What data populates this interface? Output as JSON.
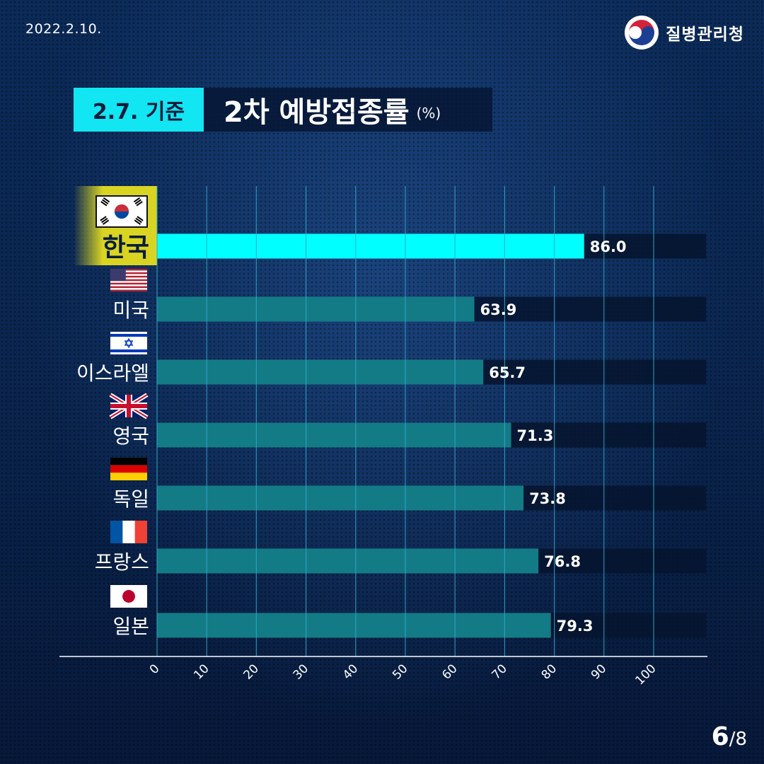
{
  "header": {
    "date": "2022.2.10.",
    "agency_name": "질병관리청"
  },
  "title": {
    "tag": "2.7. 기준",
    "main": "2차 예방접종률",
    "unit": "(%)"
  },
  "colors": {
    "highlight_bar": "#00ffff",
    "bar": "#137b86",
    "track": "#06142e",
    "highlight_label_bg": "#d9d422",
    "title_tag_bg": "#12e6f2",
    "grid": "#2fa7c9"
  },
  "chart_data": {
    "type": "bar",
    "orientation": "horizontal",
    "categories": [
      "한국",
      "미국",
      "이스라엘",
      "영국",
      "독일",
      "프랑스",
      "일본"
    ],
    "flags": [
      "korea-flag-icon",
      "usa-flag-icon",
      "israel-flag-icon",
      "uk-flag-icon",
      "germany-flag-icon",
      "france-flag-icon",
      "japan-flag-icon"
    ],
    "values": [
      86.0,
      63.9,
      65.7,
      71.3,
      73.8,
      76.8,
      79.3
    ],
    "value_labels": [
      "86.0",
      "63.9",
      "65.7",
      "71.3",
      "73.8",
      "76.8",
      "79.3"
    ],
    "highlight": "한국",
    "xlim": [
      0,
      100
    ],
    "x_ticks": [
      "0",
      "10",
      "20",
      "30",
      "40",
      "50",
      "60",
      "70",
      "80",
      "90",
      "100"
    ],
    "grid": true
  },
  "page": {
    "current": "6",
    "separator": "/8"
  }
}
